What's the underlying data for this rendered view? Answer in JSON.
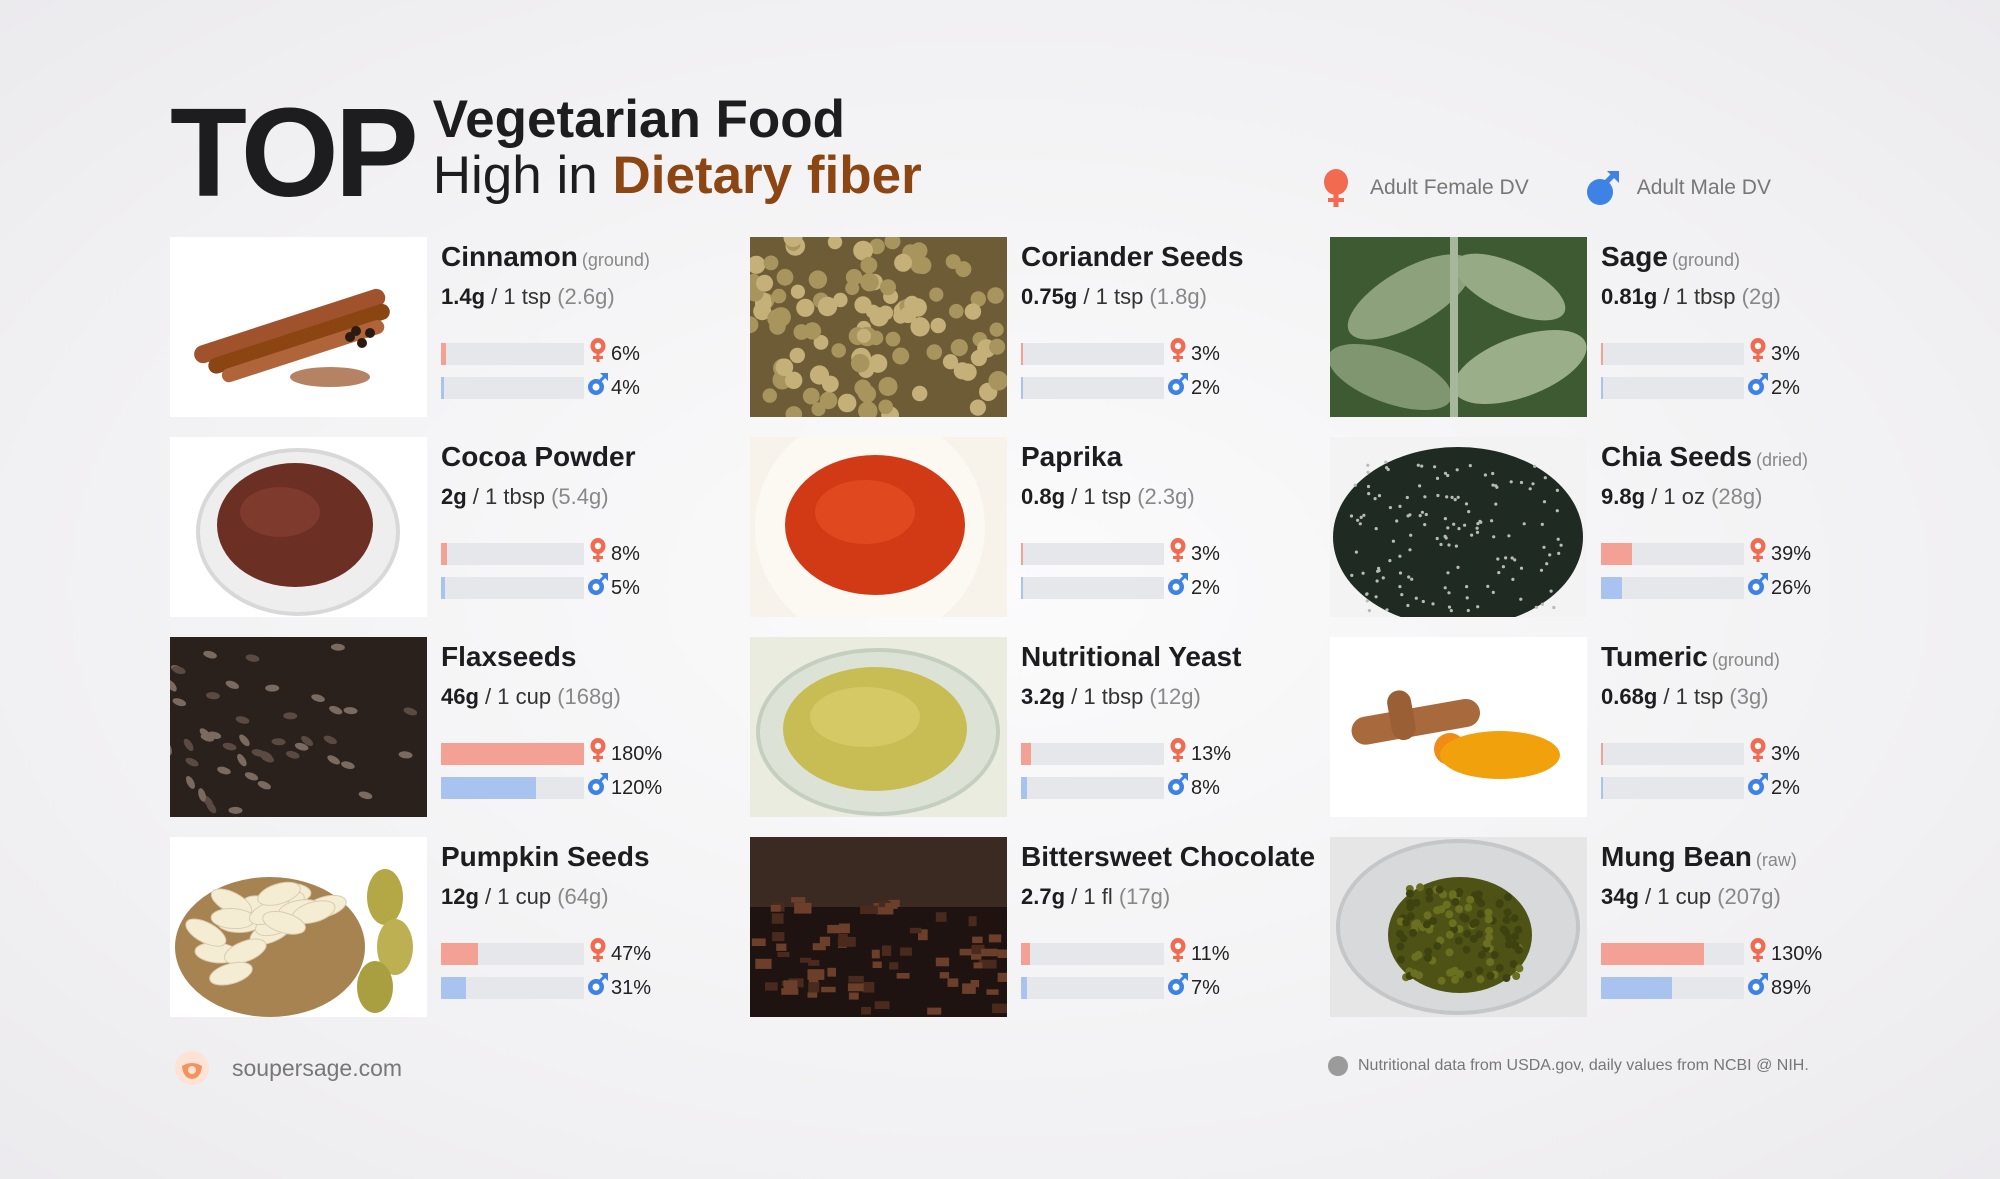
{
  "header": {
    "top_word": "TOP",
    "line1": "Vegetarian Food",
    "line2_prefix": "High in ",
    "line2_accent": "Dietary fiber",
    "accent_color": "#8c4613"
  },
  "legend": {
    "female_label": "Adult Female DV",
    "male_label": "Adult Male DV",
    "female_color": "#f26a4f",
    "male_color": "#3e82e5"
  },
  "chart_data": {
    "type": "bar",
    "categories": [
      "Cinnamon",
      "Coriander Seeds",
      "Sage",
      "Cocoa Powder",
      "Paprika",
      "Chia Seeds",
      "Flaxseeds",
      "Nutritional Yeast",
      "Tumeric",
      "Pumpkin Seeds",
      "Bittersweet Chocolate",
      "Mung Bean"
    ],
    "series": [
      {
        "name": "Adult Female DV",
        "values": [
          6,
          3,
          3,
          8,
          3,
          39,
          180,
          13,
          3,
          47,
          11,
          130
        ]
      },
      {
        "name": "Adult Male DV",
        "values": [
          4,
          2,
          2,
          5,
          2,
          26,
          120,
          8,
          2,
          31,
          7,
          89
        ]
      }
    ],
    "ylim": [
      0,
      180
    ]
  },
  "foods": [
    {
      "name": "Cinnamon",
      "qualifier": "(ground)",
      "amount": "1.4g",
      "serving": " / 1 tsp ",
      "weight": "(2.6g)",
      "female_pct": "6%",
      "male_pct": "4%",
      "female_val": 6,
      "male_val": 4,
      "icon": "cinnamon-image"
    },
    {
      "name": "Coriander Seeds",
      "qualifier": "",
      "amount": "0.75g",
      "serving": " / 1 tsp ",
      "weight": "(1.8g)",
      "female_pct": "3%",
      "male_pct": "2%",
      "female_val": 3,
      "male_val": 2,
      "icon": "coriander-image"
    },
    {
      "name": "Sage",
      "qualifier": "(ground)",
      "amount": "0.81g",
      "serving": " / 1 tbsp ",
      "weight": "(2g)",
      "female_pct": "3%",
      "male_pct": "2%",
      "female_val": 3,
      "male_val": 2,
      "icon": "sage-image"
    },
    {
      "name": "Cocoa Powder",
      "qualifier": "",
      "amount": "2g",
      "serving": " / 1 tbsp ",
      "weight": "(5.4g)",
      "female_pct": "8%",
      "male_pct": "5%",
      "female_val": 8,
      "male_val": 5,
      "icon": "cocoa-image"
    },
    {
      "name": "Paprika",
      "qualifier": "",
      "amount": "0.8g",
      "serving": " / 1 tsp ",
      "weight": "(2.3g)",
      "female_pct": "3%",
      "male_pct": "2%",
      "female_val": 3,
      "male_val": 2,
      "icon": "paprika-image"
    },
    {
      "name": "Chia Seeds",
      "qualifier": "(dried)",
      "amount": "9.8g",
      "serving": " / 1 oz ",
      "weight": "(28g)",
      "female_pct": "39%",
      "male_pct": "26%",
      "female_val": 39,
      "male_val": 26,
      "icon": "chia-image"
    },
    {
      "name": "Flaxseeds",
      "qualifier": "",
      "amount": "46g",
      "serving": " / 1 cup ",
      "weight": "(168g)",
      "female_pct": "180%",
      "male_pct": "120%",
      "female_val": 180,
      "male_val": 120,
      "icon": "flax-image"
    },
    {
      "name": "Nutritional Yeast",
      "qualifier": "",
      "amount": "3.2g",
      "serving": " / 1 tbsp ",
      "weight": "(12g)",
      "female_pct": "13%",
      "male_pct": "8%",
      "female_val": 13,
      "male_val": 8,
      "icon": "yeast-image"
    },
    {
      "name": "Tumeric",
      "qualifier": "(ground)",
      "amount": "0.68g",
      "serving": " / 1 tsp ",
      "weight": "(3g)",
      "female_pct": "3%",
      "male_pct": "2%",
      "female_val": 3,
      "male_val": 2,
      "icon": "turmeric-image"
    },
    {
      "name": "Pumpkin Seeds",
      "qualifier": "",
      "amount": "12g",
      "serving": " / 1 cup ",
      "weight": "(64g)",
      "female_pct": "47%",
      "male_pct": "31%",
      "female_val": 47,
      "male_val": 31,
      "icon": "pumpkin-image"
    },
    {
      "name": "Bittersweet Chocolate",
      "qualifier": "",
      "amount": "2.7g",
      "serving": " / 1 fl ",
      "weight": "(17g)",
      "female_pct": "11%",
      "male_pct": "7%",
      "female_val": 11,
      "male_val": 7,
      "icon": "chocolate-image"
    },
    {
      "name": "Mung Bean",
      "qualifier": "(raw)",
      "amount": "34g",
      "serving": " / 1 cup ",
      "weight": "(207g)",
      "female_pct": "130%",
      "male_pct": "89%",
      "female_val": 130,
      "male_val": 89,
      "icon": "mung-image"
    }
  ],
  "footer": {
    "site": "soupersage.com",
    "note": "Nutritional data from USDA.gov, daily values from NCBI @ NIH."
  }
}
